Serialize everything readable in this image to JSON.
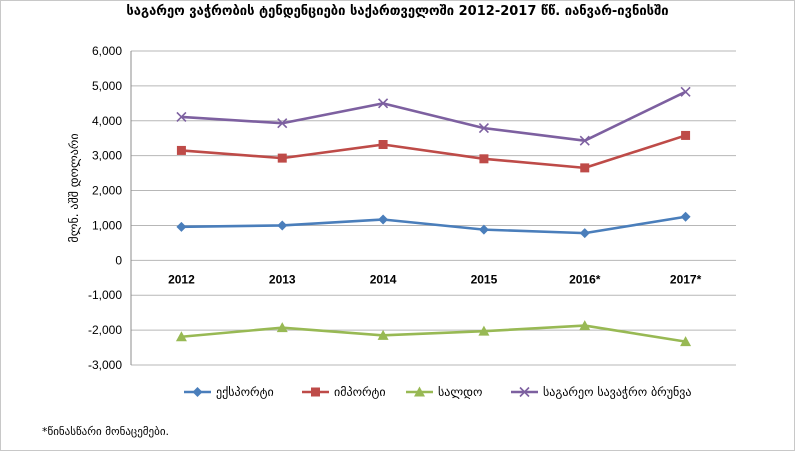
{
  "chart_data": {
    "type": "line",
    "title": "საგარეო ვაჭრობის ტენდენციები საქართველოში 2012-2017 წწ. იანვარ-ივნისში",
    "ylabel": "მლნ. აშშ დოლარი",
    "xlabel": "",
    "categories": [
      "2012",
      "2013",
      "2014",
      "2015",
      "2016*",
      "2017*"
    ],
    "ylim": [
      -3000,
      6000
    ],
    "yticks": [
      6000,
      5000,
      4000,
      3000,
      2000,
      1000,
      0,
      -1000,
      -2000,
      -3000
    ],
    "ytick_labels": [
      "6,000",
      "5,000",
      "4,000",
      "3,000",
      "2,000",
      "1,000",
      "0",
      "-1,000",
      "-2,000",
      "-3,000"
    ],
    "grid": true,
    "legend_position": "bottom",
    "series": [
      {
        "name": "ექსპორტი",
        "values": [
          960,
          1000,
          1170,
          880,
          780,
          1250
        ],
        "color": "#4a7ebb",
        "marker": "diamond"
      },
      {
        "name": "იმპორტი",
        "values": [
          3150,
          2930,
          3320,
          2910,
          2650,
          3580
        ],
        "color": "#be4b48",
        "marker": "square"
      },
      {
        "name": "სალდო",
        "values": [
          -2190,
          -1930,
          -2150,
          -2030,
          -1870,
          -2330
        ],
        "color": "#98b954",
        "marker": "triangle"
      },
      {
        "name": "საგარეო სავაჭრო ბრუნვა",
        "values": [
          4110,
          3930,
          4500,
          3790,
          3430,
          4830
        ],
        "color": "#7d60a0",
        "marker": "x"
      }
    ]
  },
  "footnote": "*წინასწარი მონაცემები."
}
